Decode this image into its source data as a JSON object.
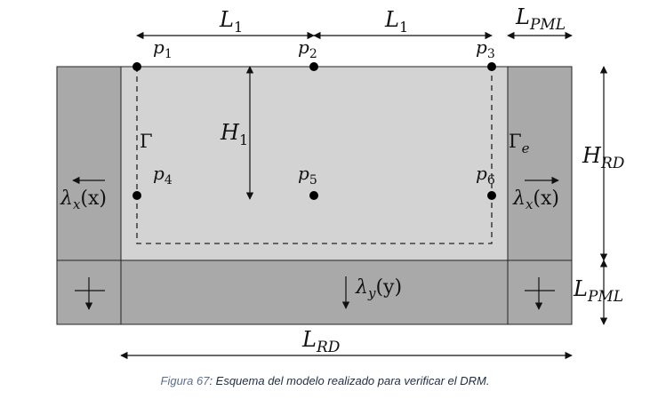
{
  "diagram": {
    "dim_L1_left": "L",
    "dim_L1_left_sub": "1",
    "dim_L1_right": "L",
    "dim_L1_right_sub": "1",
    "dim_LPML_top": "L",
    "dim_LPML_top_sub": "PML",
    "dim_HRD": "H",
    "dim_HRD_sub": "RD",
    "dim_LPML_right": "L",
    "dim_LPML_right_sub": "PML",
    "dim_LRD": "L",
    "dim_LRD_sub": "RD",
    "dim_H1": "H",
    "dim_H1_sub": "1",
    "points": [
      {
        "sym": "p",
        "sub": "1"
      },
      {
        "sym": "p",
        "sub": "2"
      },
      {
        "sym": "p",
        "sub": "3"
      },
      {
        "sym": "p",
        "sub": "4"
      },
      {
        "sym": "p",
        "sub": "5"
      },
      {
        "sym": "p",
        "sub": "6"
      }
    ],
    "gamma": "Γ",
    "gamma_e": "Γ",
    "gamma_e_sub": "e",
    "lambda_x_left": "λ",
    "lambda_x_left_sub": "x",
    "lambda_x_left_arg": "(x)",
    "lambda_x_right": "λ",
    "lambda_x_right_sub": "x",
    "lambda_x_right_arg": "(x)",
    "lambda_y": "λ",
    "lambda_y_sub": "y",
    "lambda_y_arg": "(y)"
  },
  "caption": {
    "label": "Figura 67",
    "text": ": Esquema del modelo realizado para verificar el DRM."
  }
}
